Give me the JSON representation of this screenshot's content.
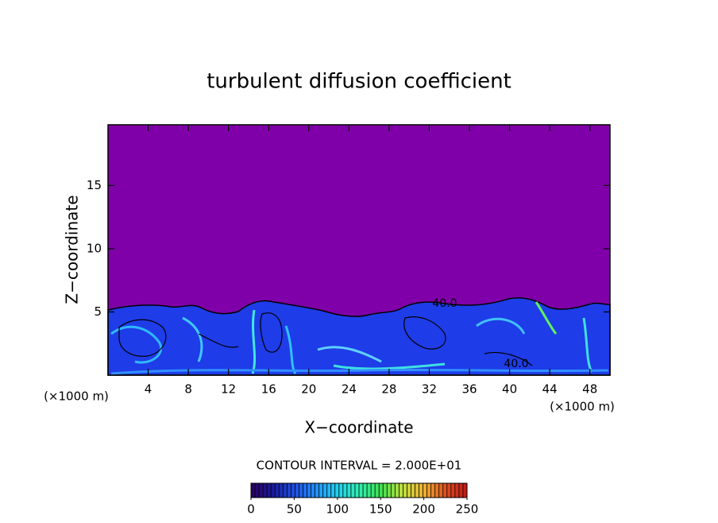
{
  "chart_data": {
    "type": "contour",
    "title": "turbulent diffusion coefficient",
    "x_label": "X−coordinate",
    "y_label": "Z−coordinate",
    "x_unit": "(×1000 m)",
    "xlim": [
      0,
      50
    ],
    "xticks": [
      4,
      8,
      12,
      16,
      20,
      24,
      28,
      32,
      36,
      40,
      44,
      48
    ],
    "ylim": [
      0,
      19.8
    ],
    "yticks": [
      5,
      10,
      15
    ],
    "background_color": "#7f00a8",
    "contour_interval_text": "CONTOUR INTERVAL = 2.000E+01",
    "contour_labels": [
      "40.0",
      "40.0"
    ],
    "colorbar": {
      "lim": [
        0,
        250
      ],
      "ticks": [
        0,
        50,
        100,
        150,
        200,
        250
      ],
      "colors": [
        "#2a0060",
        "#1a1a9a",
        "#1f4fe0",
        "#2090ff",
        "#20d0f0",
        "#30f0b0",
        "#40e050",
        "#c0e040",
        "#f0b030",
        "#e05020",
        "#c01818"
      ]
    }
  }
}
